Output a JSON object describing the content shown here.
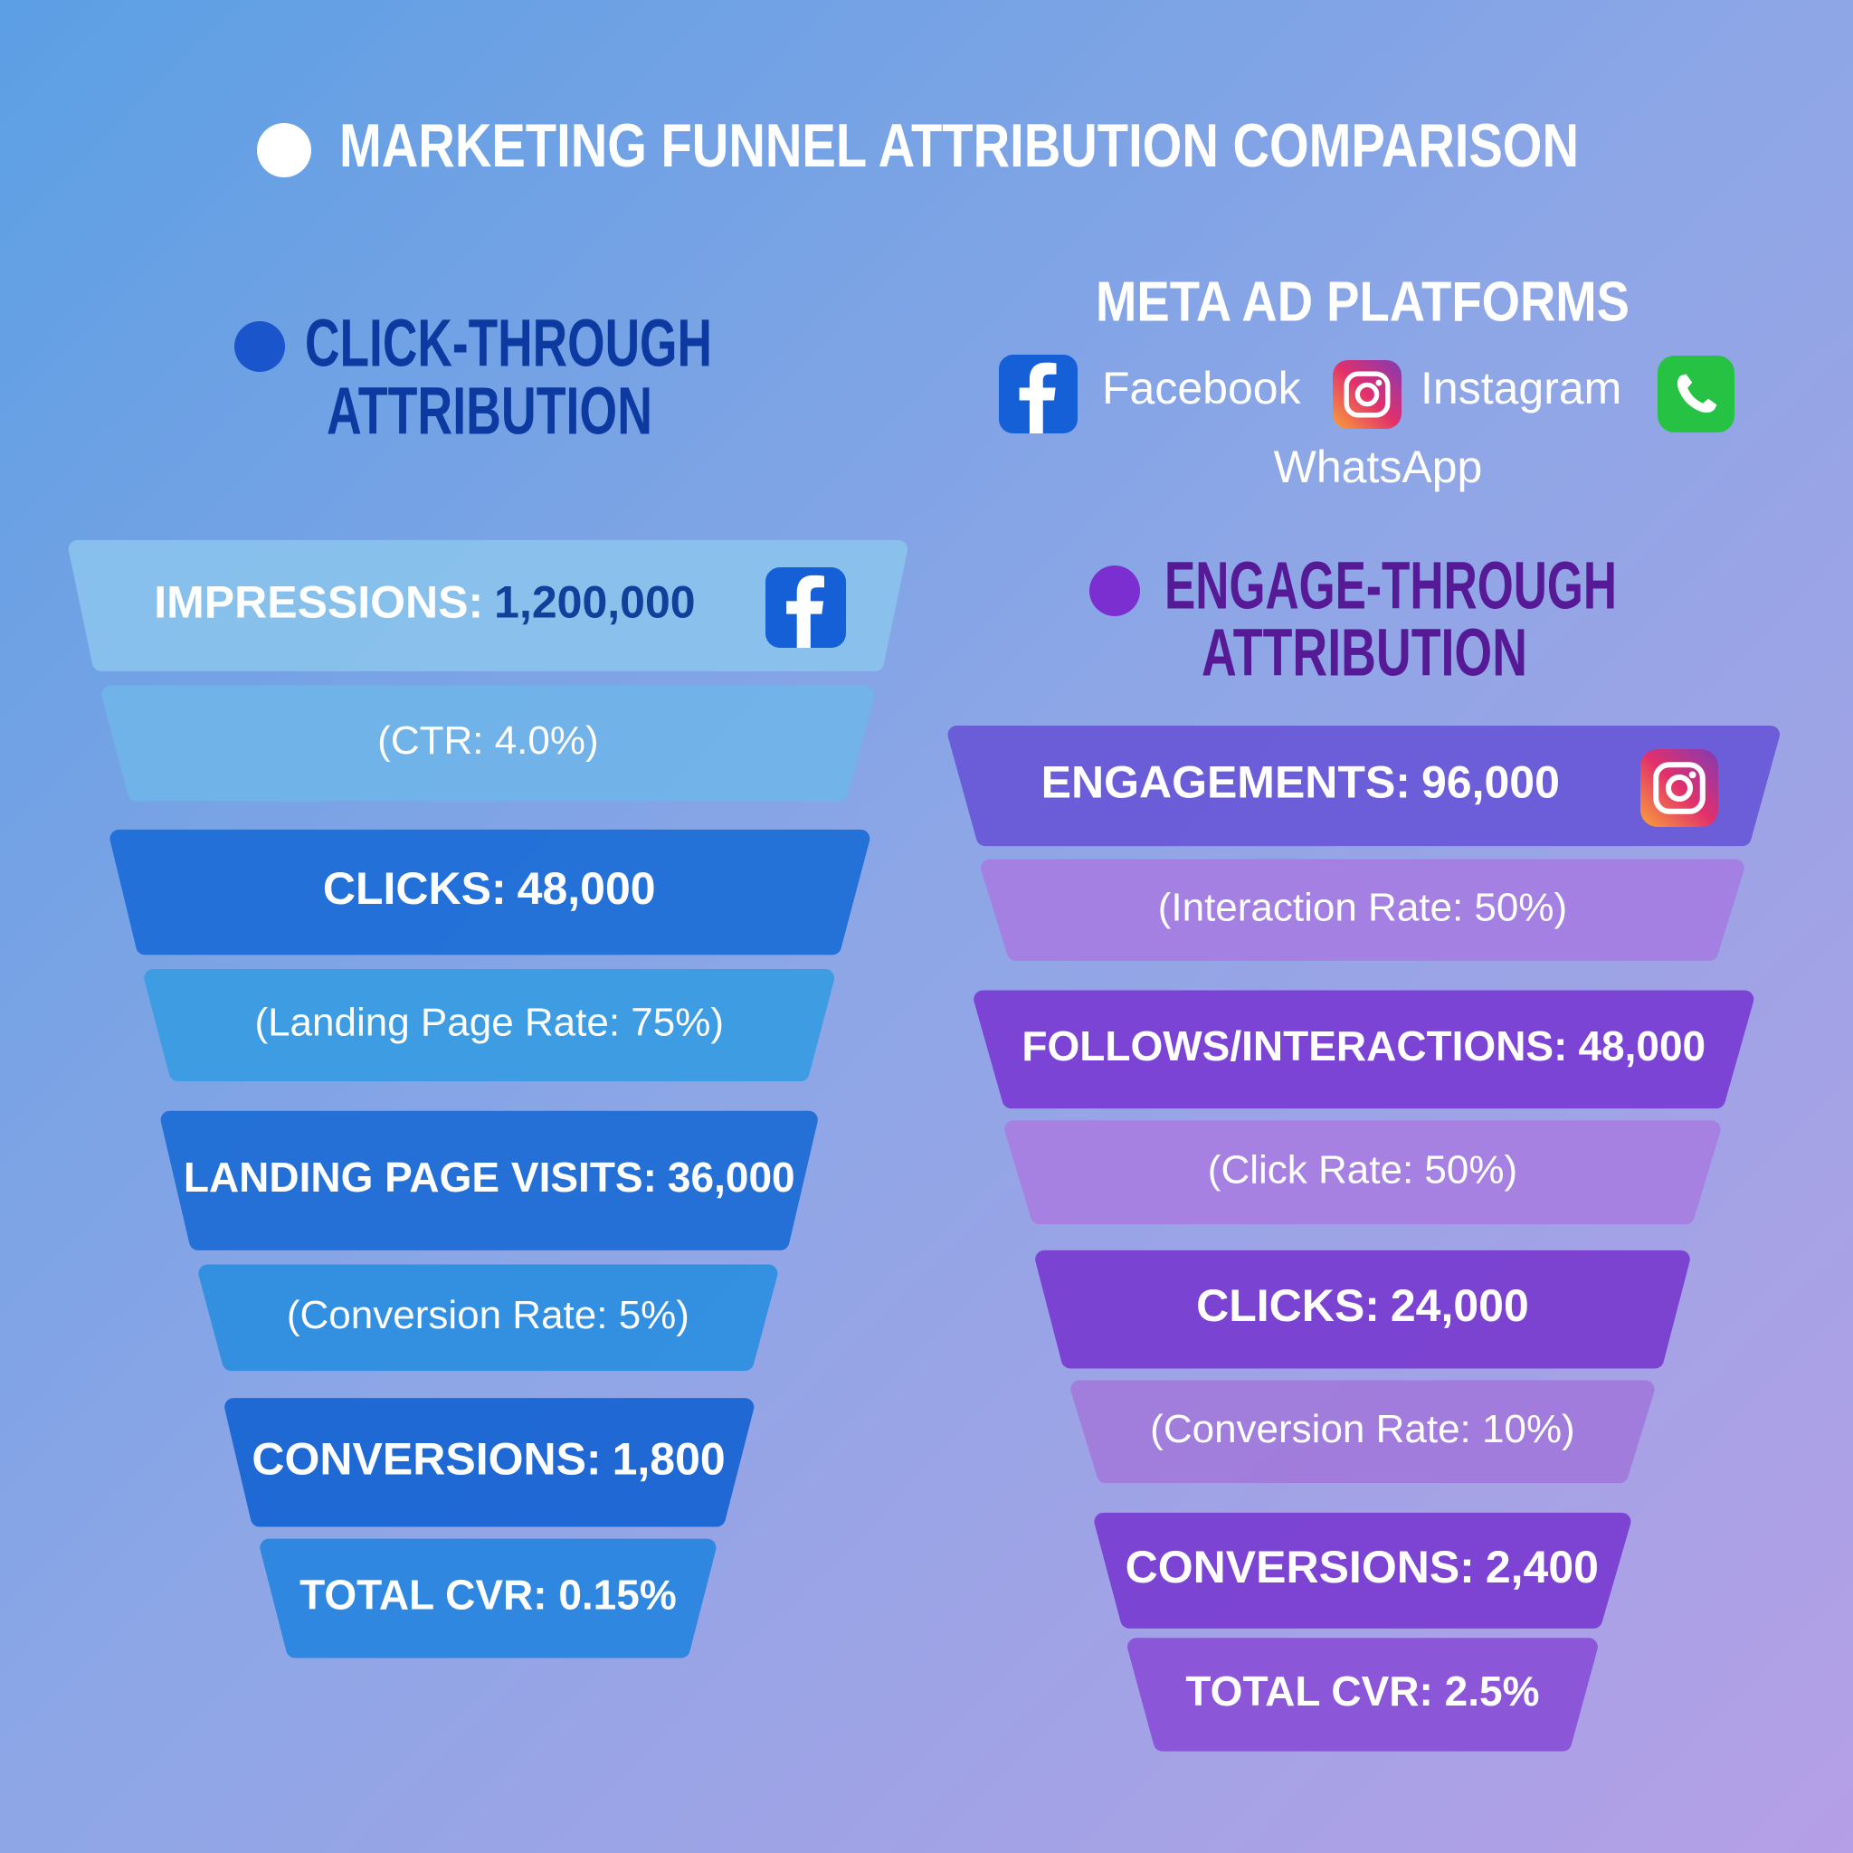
{
  "header": {
    "title": "MARKETING FUNNEL ATTRIBUTION COMPARISON"
  },
  "platforms": {
    "title": "META AD PLATFORMS",
    "items": [
      "Facebook",
      "Instagram",
      "WhatsApp"
    ]
  },
  "funnels": [
    {
      "title": [
        "CLICK-THROUGH",
        "ATTRIBUTION"
      ],
      "steps": [
        {
          "label": "IMPRESSIONS:",
          "value": "1,200,000",
          "note": "(CTR: 4.0%)"
        },
        {
          "label": "CLICKS:",
          "value": "48,000",
          "note": "(Landing Page Rate: 75%)"
        },
        {
          "label": "LANDING PAGE VISITS:",
          "value": "36,000",
          "note": "(Conversion Rate: 5%)"
        },
        {
          "label": "CONVERSIONS:",
          "value": "1,800",
          "note": "TOTAL CVR: 0.15%"
        }
      ]
    },
    {
      "title": [
        "ENGAGE-THROUGH",
        "ATTRIBUTION"
      ],
      "steps": [
        {
          "label": "ENGAGEMENTS:",
          "value": "96,000",
          "note": "(Interaction Rate: 50%)"
        },
        {
          "label": "FOLLOWS/INTERACTIONS:",
          "value": "48,000",
          "note": "(Click Rate: 50%)"
        },
        {
          "label": "CLICKS:",
          "value": "24,000",
          "note": "(Conversion Rate: 10%)"
        },
        {
          "label": "CONVERSIONS:",
          "value": "2,400",
          "note": "TOTAL CVR: 2.5%"
        }
      ]
    }
  ]
}
